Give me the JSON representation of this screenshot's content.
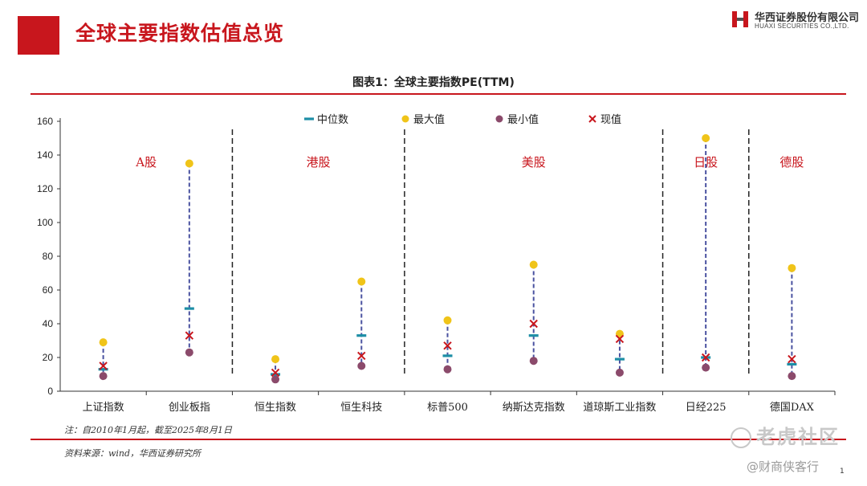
{
  "header": {
    "title": "全球主要指数估值总览",
    "logo_cn": "华西证券股份有限公司",
    "logo_en": "HUAXI SECURITIES CO.,LTD."
  },
  "figure_title": "图表1：全球主要指数PE(TTM)",
  "note": "注：自2010年1月起，截至2025年8月1日",
  "source": "资料来源：wind，华西证券研究所",
  "watermark": {
    "brand": "老虎社区",
    "handle": "@财商侠客行"
  },
  "page_number": "1",
  "colors": {
    "median": "#1d8ea6",
    "max": "#f0c419",
    "min": "#8b4a6b",
    "current": "#c8161d",
    "range_line": "#4a52a0",
    "accent": "#c8161d"
  },
  "chart_data": {
    "type": "scatter",
    "title": "图表1：全球主要指数PE(TTM)",
    "categories": [
      "上证指数",
      "创业板指",
      "恒生指数",
      "恒生科技",
      "标普500",
      "纳斯达克指数",
      "道琼斯工业指数",
      "日经225",
      "德国DAX"
    ],
    "groups": [
      {
        "label": "A股",
        "start": 0,
        "end": 1
      },
      {
        "label": "港股",
        "start": 2,
        "end": 3
      },
      {
        "label": "美股",
        "start": 4,
        "end": 6
      },
      {
        "label": "日股",
        "start": 7,
        "end": 7
      },
      {
        "label": "德股",
        "start": 8,
        "end": 8
      }
    ],
    "series": [
      {
        "name": "中位数",
        "marker": "dash",
        "values": [
          13,
          49,
          10,
          33,
          21,
          33,
          19,
          20,
          16
        ]
      },
      {
        "name": "最大值",
        "marker": "circle",
        "values": [
          29,
          135,
          19,
          65,
          42,
          75,
          34,
          150,
          73
        ]
      },
      {
        "name": "最小值",
        "marker": "circle",
        "values": [
          9,
          23,
          7,
          15,
          13,
          18,
          11,
          14,
          9
        ]
      },
      {
        "name": "现值",
        "marker": "x",
        "values": [
          15,
          33,
          11,
          21,
          27,
          40,
          31,
          20,
          19
        ]
      }
    ],
    "yticks": [
      0,
      20,
      40,
      60,
      80,
      100,
      120,
      140,
      160
    ],
    "ylim": [
      0,
      160
    ],
    "legend": "top-center",
    "grid": false
  }
}
